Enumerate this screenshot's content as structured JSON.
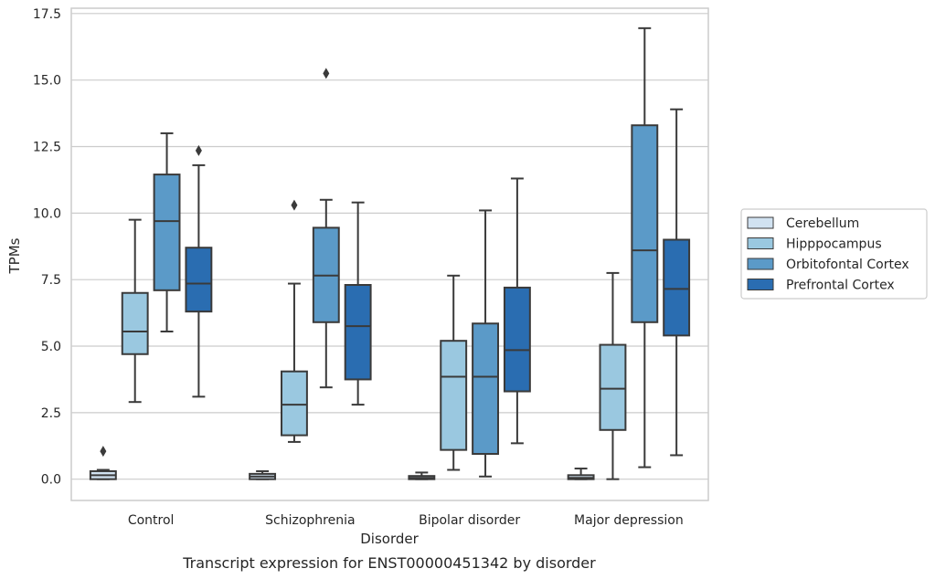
{
  "chart_data": {
    "type": "box",
    "title": "",
    "caption": "Transcript expression for ENST00000451342 by disorder",
    "xlabel": "Disorder",
    "ylabel": "TPMs",
    "ylim": [
      -0.8,
      17.7
    ],
    "yticks": [
      "0.0",
      "2.5",
      "5.0",
      "7.5",
      "10.0",
      "12.5",
      "15.0",
      "17.5"
    ],
    "ytick_values": [
      0,
      2.5,
      5,
      7.5,
      10,
      12.5,
      15,
      17.5
    ],
    "grid": true,
    "legend_position": "right",
    "categories": [
      "Control",
      "Schizophrenia",
      "Bipolar disorder",
      "Major depression"
    ],
    "series": [
      {
        "name": "Cerebellum",
        "color": "#d1e2f1",
        "boxes": [
          {
            "min": 0.0,
            "q1": 0.0,
            "median": 0.15,
            "q3": 0.3,
            "max": 0.35,
            "outliers": [
              1.05
            ]
          },
          {
            "min": 0.0,
            "q1": 0.0,
            "median": 0.1,
            "q3": 0.2,
            "max": 0.3,
            "outliers": []
          },
          {
            "min": 0.0,
            "q1": 0.0,
            "median": 0.05,
            "q3": 0.12,
            "max": 0.25,
            "outliers": []
          },
          {
            "min": 0.0,
            "q1": 0.0,
            "median": 0.05,
            "q3": 0.15,
            "max": 0.4,
            "outliers": []
          }
        ]
      },
      {
        "name": "Hipppocampus",
        "color": "#9ac8e0",
        "boxes": [
          {
            "min": 2.9,
            "q1": 4.7,
            "median": 5.55,
            "q3": 7.0,
            "max": 9.75,
            "outliers": []
          },
          {
            "min": 1.4,
            "q1": 1.65,
            "median": 2.8,
            "q3": 4.05,
            "max": 7.35,
            "outliers": [
              10.3
            ]
          },
          {
            "min": 0.35,
            "q1": 1.1,
            "median": 3.85,
            "q3": 5.2,
            "max": 7.65,
            "outliers": []
          },
          {
            "min": 0.0,
            "q1": 1.85,
            "median": 3.4,
            "q3": 5.05,
            "max": 7.75,
            "outliers": []
          }
        ]
      },
      {
        "name": "Orbitofontal Cortex",
        "color": "#5b9ac8",
        "boxes": [
          {
            "min": 5.55,
            "q1": 7.1,
            "median": 9.7,
            "q3": 11.45,
            "max": 13.0,
            "outliers": []
          },
          {
            "min": 3.45,
            "q1": 5.9,
            "median": 7.65,
            "q3": 9.45,
            "max": 10.5,
            "outliers": [
              15.25
            ]
          },
          {
            "min": 0.1,
            "q1": 0.95,
            "median": 3.85,
            "q3": 5.85,
            "max": 10.1,
            "outliers": []
          },
          {
            "min": 0.45,
            "q1": 5.9,
            "median": 8.6,
            "q3": 13.3,
            "max": 16.95,
            "outliers": []
          }
        ]
      },
      {
        "name": "Prefrontal Cortex",
        "color": "#2a6db1",
        "boxes": [
          {
            "min": 3.1,
            "q1": 6.3,
            "median": 7.35,
            "q3": 8.7,
            "max": 11.8,
            "outliers": [
              12.35
            ]
          },
          {
            "min": 2.8,
            "q1": 3.75,
            "median": 5.75,
            "q3": 7.3,
            "max": 10.4,
            "outliers": []
          },
          {
            "min": 1.35,
            "q1": 3.3,
            "median": 4.85,
            "q3": 7.2,
            "max": 11.3,
            "outliers": []
          },
          {
            "min": 0.9,
            "q1": 5.4,
            "median": 7.15,
            "q3": 9.0,
            "max": 13.9,
            "outliers": []
          }
        ]
      }
    ]
  }
}
